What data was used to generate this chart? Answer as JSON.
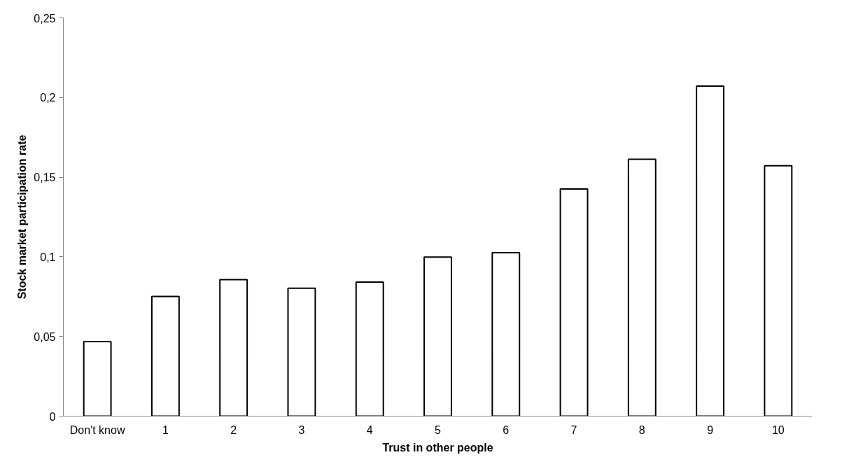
{
  "chart_data": {
    "type": "bar",
    "xlabel": "Trust in other people",
    "ylabel": "Stock market participation rate",
    "categories": [
      "Don't know",
      "1",
      "2",
      "3",
      "4",
      "5",
      "6",
      "7",
      "8",
      "9",
      "10"
    ],
    "values": [
      0.0468,
      0.0751,
      0.0857,
      0.0803,
      0.0841,
      0.0999,
      0.1026,
      0.1426,
      0.1612,
      0.2072,
      0.1572
    ],
    "color": "#ffffff",
    "ylim": [
      0,
      0.25
    ],
    "yticks": [
      0,
      {
        "value": 0.05,
        "label": "0,05"
      },
      {
        "value": 0.1,
        "label": "0,1"
      },
      {
        "value": 0.15,
        "label": "0,15"
      },
      {
        "value": 0.2,
        "label": "0,2"
      },
      {
        "value": 0.25,
        "label": "0,25"
      }
    ],
    "grid": false
  }
}
